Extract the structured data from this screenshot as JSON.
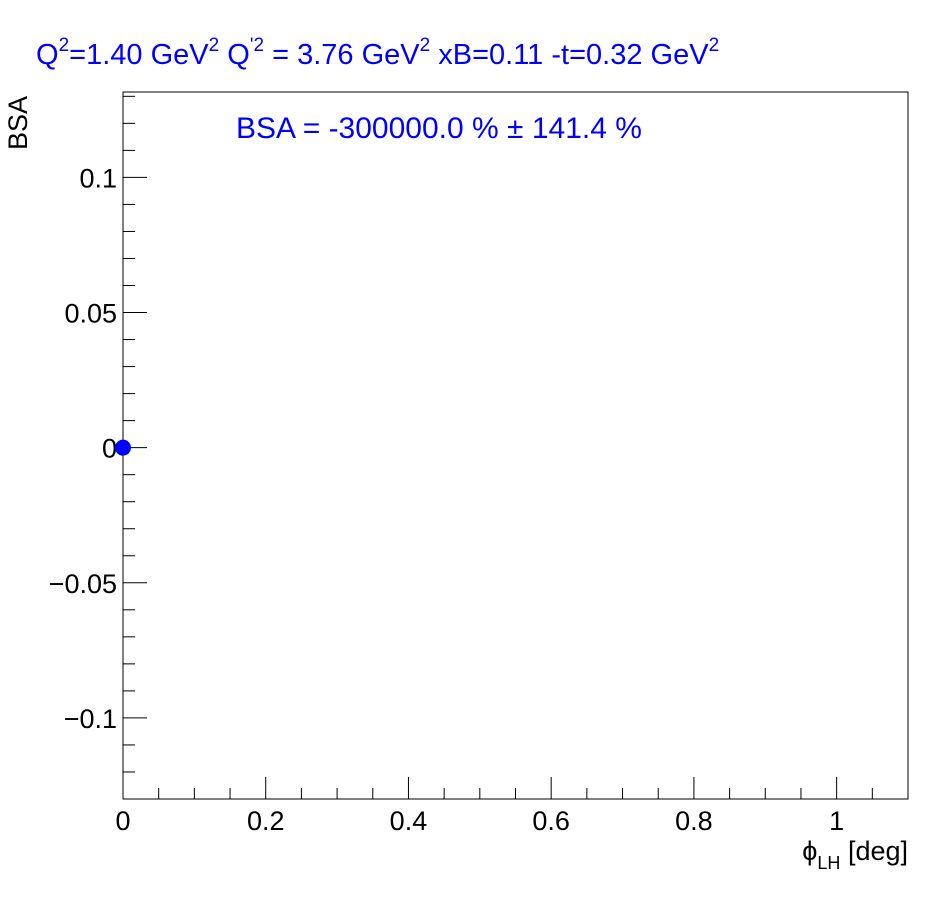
{
  "chart_data": {
    "type": "scatter",
    "title": {
      "q2_prefix": "Q",
      "q2_exp": "2",
      "q2_val": "=1.40 GeV",
      "q2_unit_exp": "2",
      "qp2_prefix": "  Q",
      "qp2_exp": "'2",
      "qp2_val": " = 3.76 GeV",
      "qp2_unit_exp": "2",
      "xb": "  xB=0.11",
      "t_val": "  -t=0.32 GeV",
      "t_exp": "2"
    },
    "annotation": "BSA = -300000.0 % ± 141.4 %",
    "xlabel": {
      "symbol": "ϕ",
      "sub": "LH",
      "unit": " [deg]"
    },
    "ylabel": "BSA",
    "xlim": [
      0,
      1.1
    ],
    "ylim": [
      -0.13,
      0.1316
    ],
    "x_ticks": [
      {
        "value": 0,
        "label": "0"
      },
      {
        "value": 0.2,
        "label": "0.2"
      },
      {
        "value": 0.4,
        "label": "0.4"
      },
      {
        "value": 0.6,
        "label": "0.6"
      },
      {
        "value": 0.8,
        "label": "0.8"
      },
      {
        "value": 1.0,
        "label": "1"
      }
    ],
    "y_ticks": [
      {
        "value": 0.1,
        "label": "0.1"
      },
      {
        "value": 0.05,
        "label": "0.05"
      },
      {
        "value": 0,
        "label": "0"
      },
      {
        "value": -0.05,
        "label": "−0.05"
      },
      {
        "value": -0.1,
        "label": "−0.1"
      }
    ],
    "grid": false,
    "series": [
      {
        "x": [
          0
        ],
        "y": [
          0
        ],
        "color": "#0000ff"
      }
    ]
  }
}
